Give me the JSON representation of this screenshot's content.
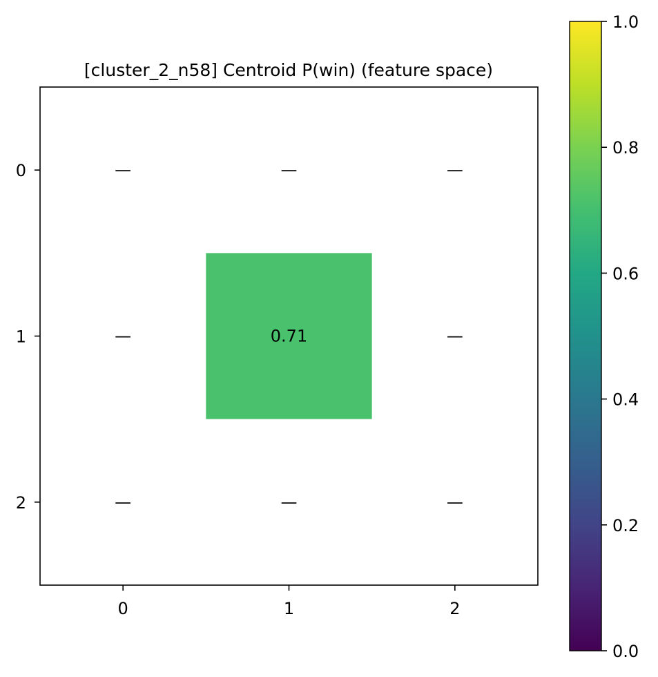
{
  "chart_data": {
    "type": "heatmap",
    "title": "[cluster_2_n58] Centroid P(win) (feature space)",
    "xlabel": "",
    "ylabel": "",
    "x_ticks": [
      "0",
      "1",
      "2"
    ],
    "y_ticks": [
      "0",
      "1",
      "2"
    ],
    "grid": false,
    "missing_marker": "—",
    "cells": [
      [
        null,
        null,
        null
      ],
      [
        null,
        0.71,
        null
      ],
      [
        null,
        null,
        null
      ]
    ],
    "cell_labels": [
      [
        "—",
        "—",
        "—"
      ],
      [
        "—",
        "0.71",
        "—"
      ],
      [
        "—",
        "—",
        "—"
      ]
    ],
    "colorbar": {
      "colormap": "viridis",
      "range": [
        0.0,
        1.0
      ],
      "ticks": [
        "0.0",
        "0.2",
        "0.4",
        "0.6",
        "0.8",
        "1.0"
      ],
      "tick_values": [
        0.0,
        0.2,
        0.4,
        0.6,
        0.8,
        1.0
      ]
    }
  }
}
